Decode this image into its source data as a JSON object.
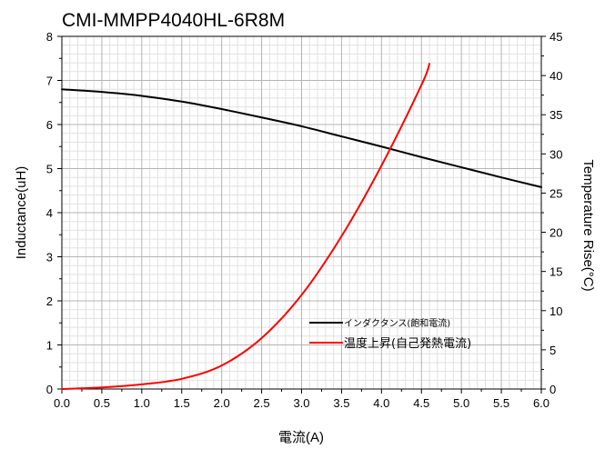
{
  "chart_data": {
    "type": "line",
    "title": "CMI-MMPP4040HL-6R8M",
    "xlabel": "電流(A)",
    "ylabel_left": "Inductance(uH)",
    "ylabel_right": "Temperature Rise(°C)",
    "xlim": [
      0,
      6
    ],
    "ylim_left": [
      0,
      8
    ],
    "ylim_right": [
      0,
      45
    ],
    "x_ticks": [
      "0.0",
      "0.5",
      "1.0",
      "1.5",
      "2.0",
      "2.5",
      "3.0",
      "3.5",
      "4.0",
      "4.5",
      "5.0",
      "5.5",
      "6.0"
    ],
    "y_ticks_left": [
      "0",
      "1",
      "2",
      "3",
      "4",
      "5",
      "6",
      "7",
      "8"
    ],
    "y_ticks_right": [
      "0",
      "5",
      "10",
      "15",
      "20",
      "25",
      "30",
      "35",
      "40",
      "45"
    ],
    "grid": true,
    "legend_position": "bottom-right",
    "series": [
      {
        "name": "インダクタンス(飽和電流)",
        "axis": "left",
        "color": "#000000",
        "x": [
          0.0,
          0.5,
          1.0,
          1.5,
          2.0,
          2.5,
          3.0,
          3.5,
          4.0,
          4.5,
          5.0,
          5.5,
          6.0
        ],
        "y": [
          6.8,
          6.74,
          6.65,
          6.52,
          6.35,
          6.16,
          5.96,
          5.73,
          5.5,
          5.26,
          5.03,
          4.8,
          4.58
        ]
      },
      {
        "name": "温度上昇(自己発熱電流)",
        "axis": "right",
        "color": "#ff0000",
        "x": [
          0.0,
          0.5,
          1.0,
          1.5,
          2.0,
          2.5,
          3.0,
          3.5,
          4.0,
          4.5,
          4.6
        ],
        "y": [
          0.0,
          0.2,
          0.6,
          1.3,
          3.0,
          6.5,
          12.0,
          19.5,
          28.5,
          38.8,
          41.5
        ]
      }
    ]
  }
}
